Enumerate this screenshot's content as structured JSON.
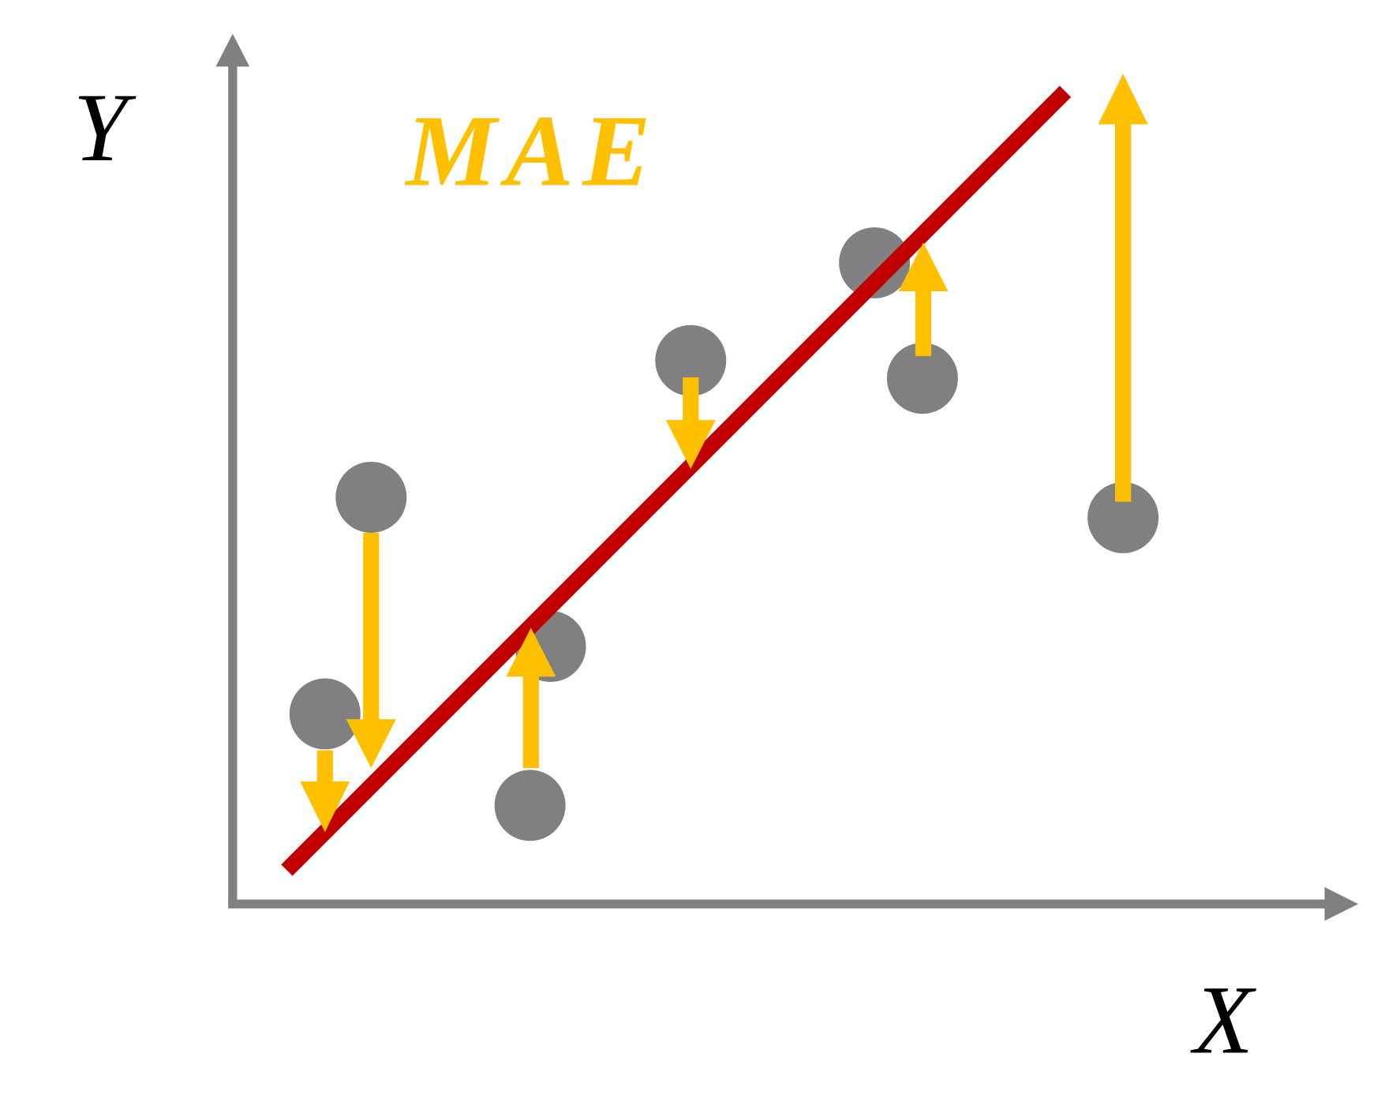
{
  "axis_labels": {
    "y": "Y",
    "x": "X"
  },
  "title": "MAE"
}
